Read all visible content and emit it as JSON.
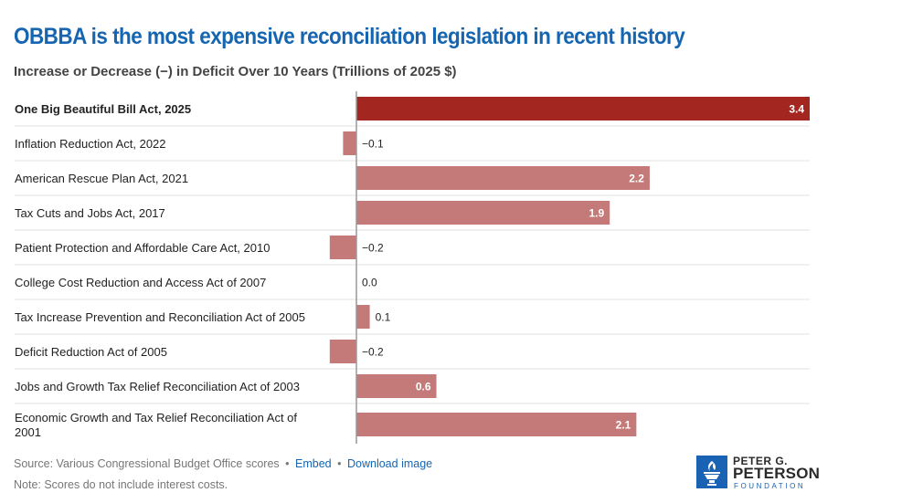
{
  "header": {
    "title": "OBBBA is the most expensive reconciliation legislation in recent history",
    "subtitle": "Increase or Decrease (−) in Deficit Over 10 Years (Trillions of 2025 $)"
  },
  "chart_data": {
    "type": "bar",
    "orientation": "horizontal",
    "title": "OBBBA is the most expensive reconciliation legislation in recent history",
    "subtitle": "Increase or Decrease (−) in Deficit Over 10 Years (Trillions of 2025 $)",
    "xlabel": "",
    "ylabel": "",
    "xlim": [
      -0.2,
      3.4
    ],
    "grid": true,
    "unit": "Trillions of 2025 $",
    "categories": [
      "One Big Beautiful Bill Act, 2025",
      "Inflation Reduction Act, 2022",
      "American Rescue Plan Act, 2021",
      "Tax Cuts and Jobs Act, 2017",
      "Patient Protection and Affordable Care Act, 2010",
      "College Cost Reduction and Access Act of 2007",
      "Tax Increase Prevention and Reconciliation Act of 2005",
      "Deficit Reduction Act of 2005",
      "Jobs and Growth Tax Relief Reconciliation Act of 2003",
      "Economic Growth and Tax Relief Reconciliation Act of 2001"
    ],
    "values": [
      3.4,
      -0.1,
      2.2,
      1.9,
      -0.2,
      0.0,
      0.1,
      -0.2,
      0.6,
      2.1
    ],
    "value_labels": [
      "3.4",
      "−0.1",
      "2.2",
      "1.9",
      "−0.2",
      "0.0",
      "0.1",
      "−0.2",
      "0.6",
      "2.1"
    ],
    "highlight_index": 0,
    "colors": {
      "highlight": "#a42620",
      "default": "#c47a78",
      "gridline": "#e6e6e6",
      "axis": "#999999"
    }
  },
  "footer": {
    "source": "Source: Various Congressional Budget Office scores",
    "embed_label": "Embed",
    "download_label": "Download image",
    "separator": "•",
    "note": "Note: Scores do not include interest costs."
  },
  "logo": {
    "line1": "PETER G.",
    "line2": "PETERSON",
    "line3": "FOUNDATION",
    "icon": "torch-icon"
  }
}
